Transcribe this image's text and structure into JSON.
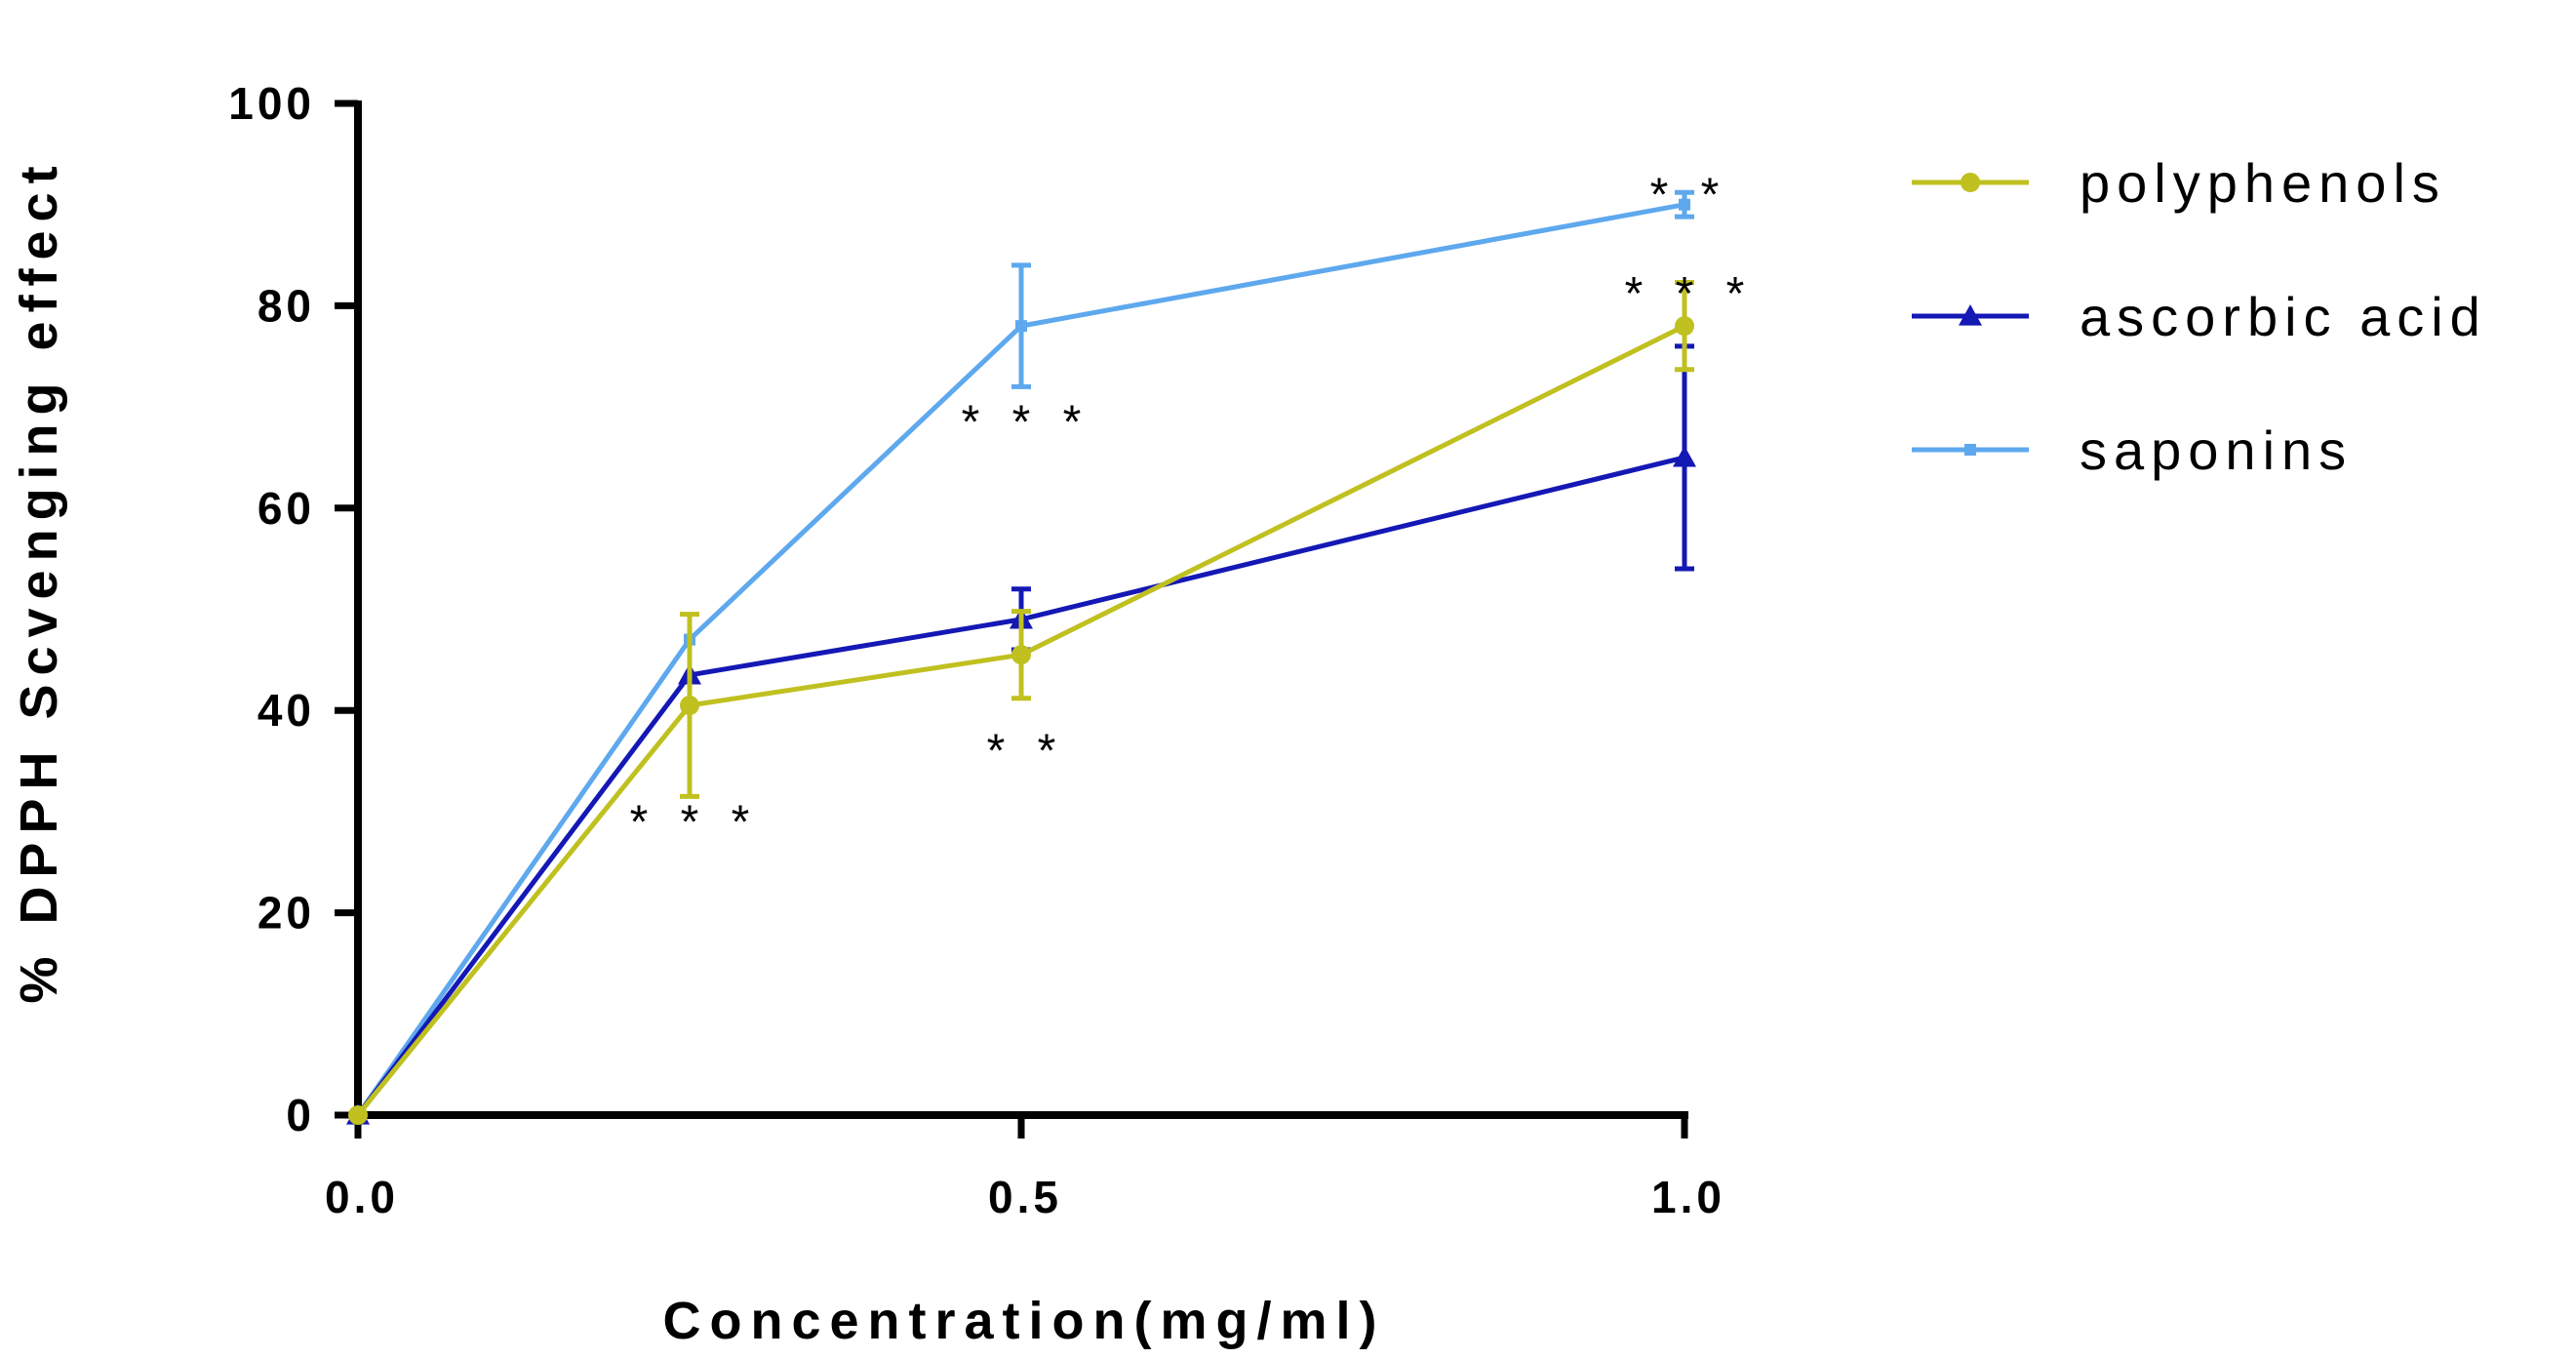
{
  "chart_data": {
    "type": "line",
    "title": "",
    "xlabel": "Concentration(mg/ml)",
    "ylabel": "% DPPH Scvenging effect",
    "xlim": [
      0,
      1.0
    ],
    "ylim": [
      0,
      100
    ],
    "xticks": [
      0.0,
      0.5,
      1.0
    ],
    "xtick_labels": [
      "0.0",
      "0.5",
      "1.0"
    ],
    "yticks": [
      0,
      20,
      40,
      60,
      80,
      100
    ],
    "ytick_labels": [
      "0",
      "20",
      "40",
      "60",
      "80",
      "100"
    ],
    "grid": false,
    "legend_position": "top-right outside",
    "x": [
      0,
      0.25,
      0.5,
      1.0
    ],
    "series": [
      {
        "name": "polyphenols",
        "color": "#c0c020",
        "marker": "circle",
        "values": [
          0,
          40.5,
          45.5,
          78
        ],
        "error": [
          0,
          9,
          4.3,
          4.3
        ]
      },
      {
        "name": "ascorbic acid",
        "color": "#1418b4",
        "marker": "triangle",
        "values": [
          0,
          43.5,
          49,
          65
        ],
        "error": [
          0,
          0,
          3,
          11
        ]
      },
      {
        "name": "saponins",
        "color": "#5ea8ee",
        "marker": "square",
        "values": [
          0,
          47,
          78,
          90
        ],
        "error": [
          0,
          0,
          6,
          1.2
        ]
      }
    ],
    "annotations": [
      {
        "x": 0.25,
        "y": 29,
        "text": "* * *"
      },
      {
        "x": 0.5,
        "y": 36,
        "text": "* *"
      },
      {
        "x": 0.5,
        "y": 68.5,
        "text": "* * *"
      },
      {
        "x": 1.0,
        "y": 91,
        "text": "* *"
      },
      {
        "x": 1.0,
        "y": 81.2,
        "text": "* * *"
      }
    ]
  }
}
